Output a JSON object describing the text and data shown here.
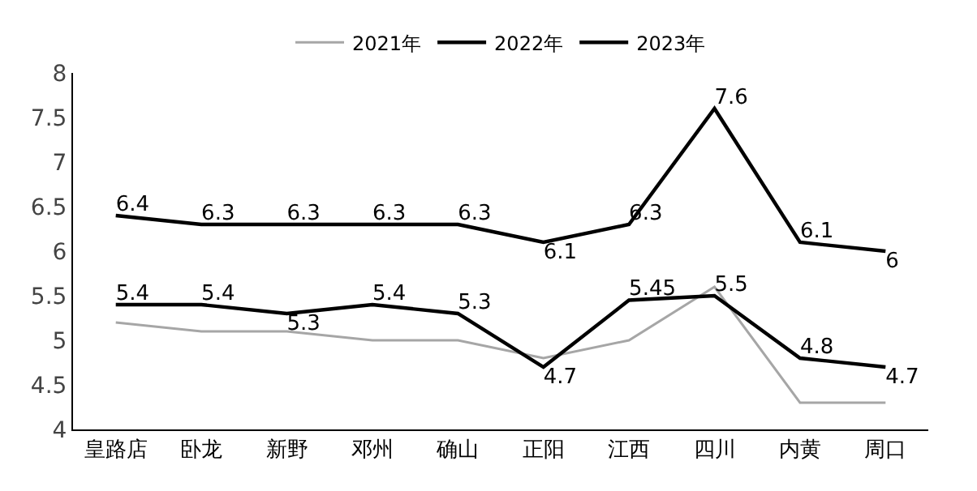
{
  "chart_data": {
    "type": "line",
    "categories": [
      "皇路店",
      "卧龙",
      "新野",
      "邓州",
      "确山",
      "正阳",
      "江西",
      "四川",
      "内黄",
      "周口"
    ],
    "series": [
      {
        "name": "2021年",
        "color": "#a6a6a6",
        "values": [
          5.2,
          5.1,
          5.1,
          5.0,
          5.0,
          4.8,
          5.0,
          5.6,
          4.3,
          4.3
        ]
      },
      {
        "name": "2022年",
        "color": "#000000",
        "values": [
          5.4,
          5.4,
          5.3,
          5.4,
          5.3,
          4.7,
          5.45,
          5.5,
          4.8,
          4.7
        ],
        "value_labels": [
          "5.4",
          "5.4",
          "5.3",
          "5.4",
          "5.3",
          "4.7",
          "5.45",
          "5.5",
          "4.8",
          "4.7"
        ]
      },
      {
        "name": "2023年",
        "color": "#000000",
        "values": [
          6.4,
          6.3,
          6.3,
          6.3,
          6.3,
          6.1,
          6.3,
          7.6,
          6.1,
          6.0
        ],
        "value_labels": [
          "6.4",
          "6.3",
          "6.3",
          "6.3",
          "6.3",
          "6.1",
          "6.3",
          "7.6",
          "6.1",
          "6"
        ]
      }
    ],
    "ylim": [
      4,
      8
    ],
    "yticks": [
      4,
      4.5,
      5,
      5.5,
      6,
      6.5,
      7,
      7.5,
      8
    ],
    "grid": false,
    "legend": "top",
    "marker": "none",
    "line_style": "solid"
  }
}
